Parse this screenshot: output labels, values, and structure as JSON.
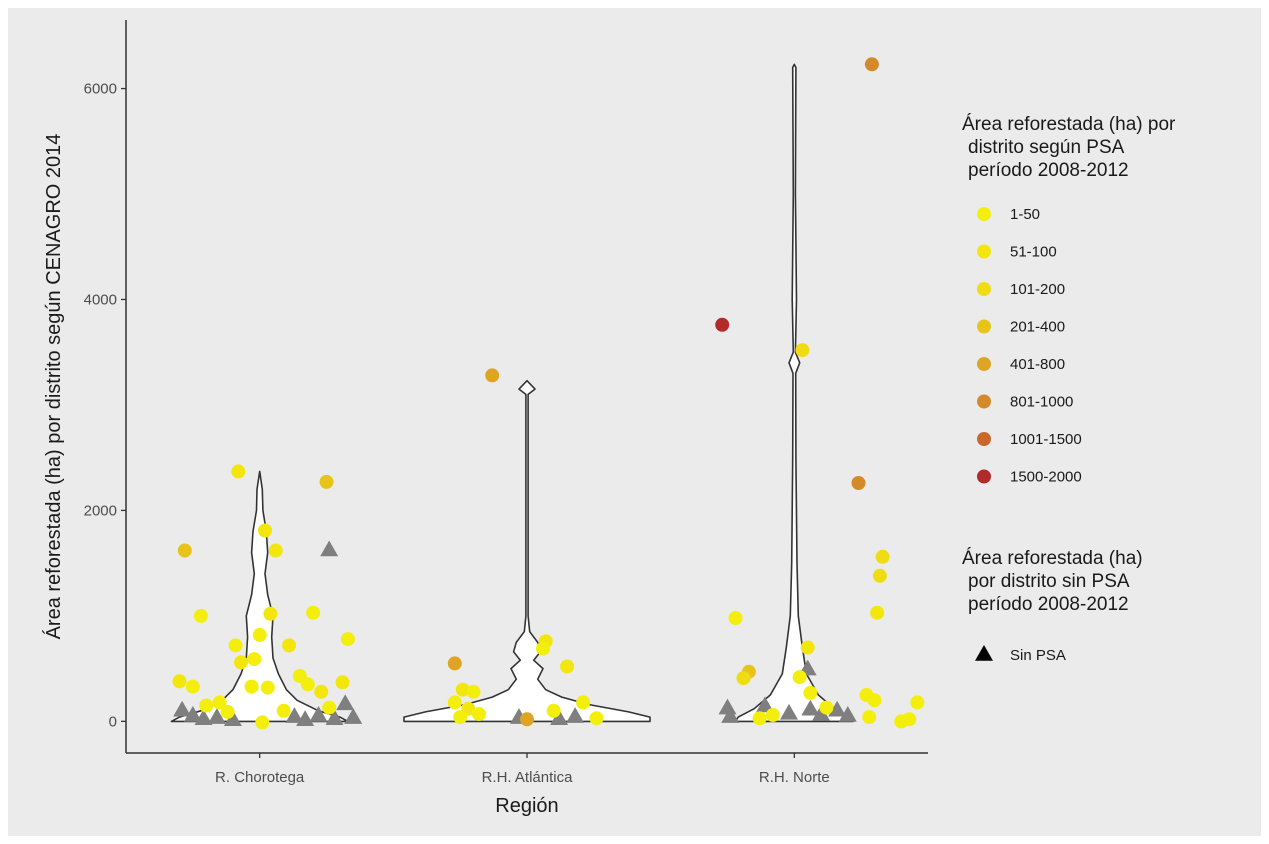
{
  "chart_data": {
    "type": "scatter",
    "subtype": "violin-with-jittered-points",
    "title": "",
    "xlabel": "Región",
    "ylabel": "Área reforestada (ha) por distrito según CENAGRO 2014",
    "categories": [
      "R. Chorotega",
      "R.H. Atlántica",
      "R.H. Norte"
    ],
    "ylim": [
      -300,
      6650
    ],
    "yticks": [
      0,
      2000,
      4000,
      6000
    ],
    "grid": false,
    "legend_position": "right",
    "legends": [
      {
        "title": [
          "Área reforestada (ha) por",
          "distrito según PSA",
          "período 2008-2012"
        ],
        "items": [
          {
            "label": "1-50",
            "color": "#f3ee0c"
          },
          {
            "label": "51-100",
            "color": "#f2e60d"
          },
          {
            "label": "101-200",
            "color": "#f0dc12"
          },
          {
            "label": "201-400",
            "color": "#e8c41a"
          },
          {
            "label": "401-800",
            "color": "#dea524"
          },
          {
            "label": "801-1000",
            "color": "#d48a2a"
          },
          {
            "label": "1001-1500",
            "color": "#c9682b"
          },
          {
            "label": "1500-2000",
            "color": "#b22a2a"
          }
        ]
      },
      {
        "title": [
          "Área reforestada (ha)",
          "por distrito sin PSA",
          "período 2008-2012"
        ],
        "items": [
          {
            "label": "Sin PSA",
            "shape": "triangle",
            "color": "#000000"
          }
        ]
      }
    ],
    "psa_points": [
      {
        "region": "R. Chorotega",
        "offset": -0.08,
        "y": 2370,
        "level": 2
      },
      {
        "region": "R. Chorotega",
        "offset": 0.25,
        "y": 2270,
        "level": 4
      },
      {
        "region": "R. Chorotega",
        "offset": 0.02,
        "y": 1810,
        "level": 2
      },
      {
        "region": "R. Chorotega",
        "offset": -0.28,
        "y": 1620,
        "level": 4
      },
      {
        "region": "R. Chorotega",
        "offset": 0.06,
        "y": 1620,
        "level": 2
      },
      {
        "region": "R. Chorotega",
        "offset": -0.22,
        "y": 1000,
        "level": 1
      },
      {
        "region": "R. Chorotega",
        "offset": 0.04,
        "y": 1020,
        "level": 2
      },
      {
        "region": "R. Chorotega",
        "offset": 0.2,
        "y": 1030,
        "level": 1
      },
      {
        "region": "R. Chorotega",
        "offset": -0.09,
        "y": 720,
        "level": 1
      },
      {
        "region": "R. Chorotega",
        "offset": 0.0,
        "y": 820,
        "level": 1
      },
      {
        "region": "R. Chorotega",
        "offset": 0.11,
        "y": 720,
        "level": 2
      },
      {
        "region": "R. Chorotega",
        "offset": 0.33,
        "y": 780,
        "level": 1
      },
      {
        "region": "R. Chorotega",
        "offset": -0.07,
        "y": 560,
        "level": 2
      },
      {
        "region": "R. Chorotega",
        "offset": -0.02,
        "y": 590,
        "level": 1
      },
      {
        "region": "R. Chorotega",
        "offset": -0.3,
        "y": 380,
        "level": 2
      },
      {
        "region": "R. Chorotega",
        "offset": -0.25,
        "y": 330,
        "level": 1
      },
      {
        "region": "R. Chorotega",
        "offset": -0.03,
        "y": 330,
        "level": 1
      },
      {
        "region": "R. Chorotega",
        "offset": 0.03,
        "y": 320,
        "level": 1
      },
      {
        "region": "R. Chorotega",
        "offset": 0.15,
        "y": 430,
        "level": 1
      },
      {
        "region": "R. Chorotega",
        "offset": 0.18,
        "y": 350,
        "level": 1
      },
      {
        "region": "R. Chorotega",
        "offset": 0.23,
        "y": 280,
        "level": 2
      },
      {
        "region": "R. Chorotega",
        "offset": 0.31,
        "y": 370,
        "level": 2
      },
      {
        "region": "R. Chorotega",
        "offset": -0.2,
        "y": 150,
        "level": 1
      },
      {
        "region": "R. Chorotega",
        "offset": -0.15,
        "y": 180,
        "level": 1
      },
      {
        "region": "R. Chorotega",
        "offset": -0.12,
        "y": 90,
        "level": 1
      },
      {
        "region": "R. Chorotega",
        "offset": 0.09,
        "y": 100,
        "level": 1
      },
      {
        "region": "R. Chorotega",
        "offset": 0.26,
        "y": 130,
        "level": 1
      },
      {
        "region": "R. Chorotega",
        "offset": 0.01,
        "y": -10,
        "level": 1
      },
      {
        "region": "R.H. Atlántica",
        "offset": -0.13,
        "y": 3280,
        "level": 5
      },
      {
        "region": "R.H. Atlántica",
        "offset": 0.07,
        "y": 760,
        "level": 2
      },
      {
        "region": "R.H. Atlántica",
        "offset": 0.06,
        "y": 690,
        "level": 1
      },
      {
        "region": "R.H. Atlántica",
        "offset": -0.27,
        "y": 550,
        "level": 5
      },
      {
        "region": "R.H. Atlántica",
        "offset": 0.15,
        "y": 520,
        "level": 2
      },
      {
        "region": "R.H. Atlántica",
        "offset": -0.24,
        "y": 300,
        "level": 2
      },
      {
        "region": "R.H. Atlántica",
        "offset": -0.2,
        "y": 280,
        "level": 1
      },
      {
        "region": "R.H. Atlántica",
        "offset": -0.27,
        "y": 180,
        "level": 1
      },
      {
        "region": "R.H. Atlántica",
        "offset": -0.22,
        "y": 120,
        "level": 2
      },
      {
        "region": "R.H. Atlántica",
        "offset": -0.18,
        "y": 70,
        "level": 1
      },
      {
        "region": "R.H. Atlántica",
        "offset": -0.25,
        "y": 40,
        "level": 1
      },
      {
        "region": "R.H. Atlántica",
        "offset": 0.0,
        "y": 20,
        "level": 5
      },
      {
        "region": "R.H. Atlántica",
        "offset": 0.1,
        "y": 100,
        "level": 1
      },
      {
        "region": "R.H. Atlántica",
        "offset": 0.21,
        "y": 180,
        "level": 1
      },
      {
        "region": "R.H. Atlántica",
        "offset": 0.26,
        "y": 30,
        "level": 1
      },
      {
        "region": "R.H. Norte",
        "offset": 0.29,
        "y": 6230,
        "level": 6
      },
      {
        "region": "R.H. Norte",
        "offset": -0.27,
        "y": 3760,
        "level": 8
      },
      {
        "region": "R.H. Norte",
        "offset": 0.03,
        "y": 3520,
        "level": 3
      },
      {
        "region": "R.H. Norte",
        "offset": 0.24,
        "y": 2260,
        "level": 6
      },
      {
        "region": "R.H. Norte",
        "offset": 0.33,
        "y": 1560,
        "level": 3
      },
      {
        "region": "R.H. Norte",
        "offset": 0.32,
        "y": 1380,
        "level": 3
      },
      {
        "region": "R.H. Norte",
        "offset": 0.31,
        "y": 1030,
        "level": 2
      },
      {
        "region": "R.H. Norte",
        "offset": -0.22,
        "y": 980,
        "level": 1
      },
      {
        "region": "R.H. Norte",
        "offset": 0.05,
        "y": 700,
        "level": 2
      },
      {
        "region": "R.H. Norte",
        "offset": -0.17,
        "y": 470,
        "level": 4
      },
      {
        "region": "R.H. Norte",
        "offset": -0.19,
        "y": 410,
        "level": 3
      },
      {
        "region": "R.H. Norte",
        "offset": 0.02,
        "y": 420,
        "level": 1
      },
      {
        "region": "R.H. Norte",
        "offset": 0.06,
        "y": 270,
        "level": 1
      },
      {
        "region": "R.H. Norte",
        "offset": 0.27,
        "y": 250,
        "level": 1
      },
      {
        "region": "R.H. Norte",
        "offset": 0.3,
        "y": 200,
        "level": 1
      },
      {
        "region": "R.H. Norte",
        "offset": 0.46,
        "y": 180,
        "level": 1
      },
      {
        "region": "R.H. Norte",
        "offset": 0.12,
        "y": 130,
        "level": 1
      },
      {
        "region": "R.H. Norte",
        "offset": -0.08,
        "y": 60,
        "level": 1
      },
      {
        "region": "R.H. Norte",
        "offset": 0.28,
        "y": 40,
        "level": 1
      },
      {
        "region": "R.H. Norte",
        "offset": -0.13,
        "y": 30,
        "level": 1
      },
      {
        "region": "R.H. Norte",
        "offset": 0.43,
        "y": 20,
        "level": 1
      },
      {
        "region": "R.H. Norte",
        "offset": 0.4,
        "y": 0,
        "level": 1
      }
    ],
    "sin_psa_points": [
      {
        "region": "R. Chorotega",
        "offset": 0.26,
        "y": 1630
      },
      {
        "region": "R. Chorotega",
        "offset": -0.29,
        "y": 110
      },
      {
        "region": "R. Chorotega",
        "offset": -0.25,
        "y": 60
      },
      {
        "region": "R. Chorotega",
        "offset": -0.21,
        "y": 30
      },
      {
        "region": "R. Chorotega",
        "offset": -0.16,
        "y": 40
      },
      {
        "region": "R. Chorotega",
        "offset": -0.1,
        "y": 20
      },
      {
        "region": "R. Chorotega",
        "offset": 0.13,
        "y": 50
      },
      {
        "region": "R. Chorotega",
        "offset": 0.17,
        "y": 20
      },
      {
        "region": "R. Chorotega",
        "offset": 0.22,
        "y": 60
      },
      {
        "region": "R. Chorotega",
        "offset": 0.28,
        "y": 30
      },
      {
        "region": "R. Chorotega",
        "offset": 0.32,
        "y": 170
      },
      {
        "region": "R. Chorotega",
        "offset": 0.35,
        "y": 40
      },
      {
        "region": "R.H. Atlántica",
        "offset": -0.03,
        "y": 40
      },
      {
        "region": "R.H. Atlántica",
        "offset": 0.12,
        "y": 30
      },
      {
        "region": "R.H. Atlántica",
        "offset": 0.18,
        "y": 50
      },
      {
        "region": "R.H. Norte",
        "offset": -0.25,
        "y": 130
      },
      {
        "region": "R.H. Norte",
        "offset": -0.24,
        "y": 50
      },
      {
        "region": "R.H. Norte",
        "offset": -0.11,
        "y": 150
      },
      {
        "region": "R.H. Norte",
        "offset": -0.02,
        "y": 80
      },
      {
        "region": "R.H. Norte",
        "offset": 0.05,
        "y": 500
      },
      {
        "region": "R.H. Norte",
        "offset": 0.06,
        "y": 120
      },
      {
        "region": "R.H. Norte",
        "offset": 0.1,
        "y": 70
      },
      {
        "region": "R.H. Norte",
        "offset": 0.16,
        "y": 110
      },
      {
        "region": "R.H. Norte",
        "offset": 0.2,
        "y": 60
      }
    ],
    "violins": [
      {
        "region": "R. Chorotega",
        "max": 2370,
        "profile": [
          [
            0,
            0.33
          ],
          [
            40,
            0.3
          ],
          [
            100,
            0.22
          ],
          [
            200,
            0.14
          ],
          [
            300,
            0.1
          ],
          [
            450,
            0.07
          ],
          [
            600,
            0.05
          ],
          [
            800,
            0.045
          ],
          [
            1000,
            0.05
          ],
          [
            1200,
            0.03
          ],
          [
            1400,
            0.02
          ],
          [
            1600,
            0.03
          ],
          [
            1800,
            0.025
          ],
          [
            2000,
            0.012
          ],
          [
            2200,
            0.01
          ],
          [
            2370,
            0.0
          ]
        ]
      },
      {
        "region": "R.H. Atlántica",
        "max": 3230,
        "profile": [
          [
            0,
            0.46
          ],
          [
            40,
            0.46
          ],
          [
            90,
            0.38
          ],
          [
            160,
            0.23
          ],
          [
            230,
            0.13
          ],
          [
            300,
            0.07
          ],
          [
            400,
            0.04
          ],
          [
            500,
            0.06
          ],
          [
            580,
            0.025
          ],
          [
            660,
            0.05
          ],
          [
            750,
            0.04
          ],
          [
            850,
            0.01
          ],
          [
            1000,
            0.004
          ],
          [
            3100,
            0.004
          ],
          [
            3150,
            0.03
          ],
          [
            3230,
            0.0
          ]
        ]
      },
      {
        "region": "R.H. Norte",
        "max": 6230,
        "profile": [
          [
            0,
            0.22
          ],
          [
            40,
            0.21
          ],
          [
            120,
            0.15
          ],
          [
            250,
            0.09
          ],
          [
            450,
            0.045
          ],
          [
            700,
            0.03
          ],
          [
            1000,
            0.015
          ],
          [
            1500,
            0.01
          ],
          [
            2500,
            0.006
          ],
          [
            3300,
            0.005
          ],
          [
            3400,
            0.02
          ],
          [
            3500,
            0.004
          ],
          [
            4000,
            0.008
          ],
          [
            5000,
            0.004
          ],
          [
            6200,
            0.006
          ],
          [
            6230,
            0.0
          ]
        ]
      }
    ]
  }
}
